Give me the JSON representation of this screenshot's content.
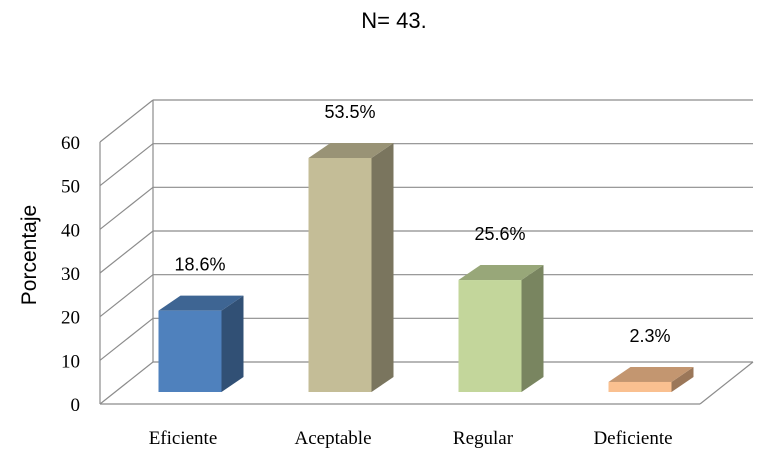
{
  "chart_data": {
    "type": "bar",
    "title": "N= 43.",
    "ylabel": "Porcentaje",
    "xlabel": "",
    "categories": [
      "Eficiente",
      "Aceptable",
      "Regular",
      "Deficiente"
    ],
    "values": [
      18.6,
      53.5,
      25.6,
      2.3
    ],
    "data_labels": [
      "18.6%",
      "53.5%",
      "25.6%",
      "2.3%"
    ],
    "ylim": [
      0,
      60
    ],
    "yticks": [
      0,
      10,
      20,
      30,
      40,
      50,
      60
    ],
    "grid": true,
    "style": "3d-column",
    "colors": [
      "#4f81bd",
      "#c4bd97",
      "#c3d69b",
      "#fac090"
    ]
  }
}
